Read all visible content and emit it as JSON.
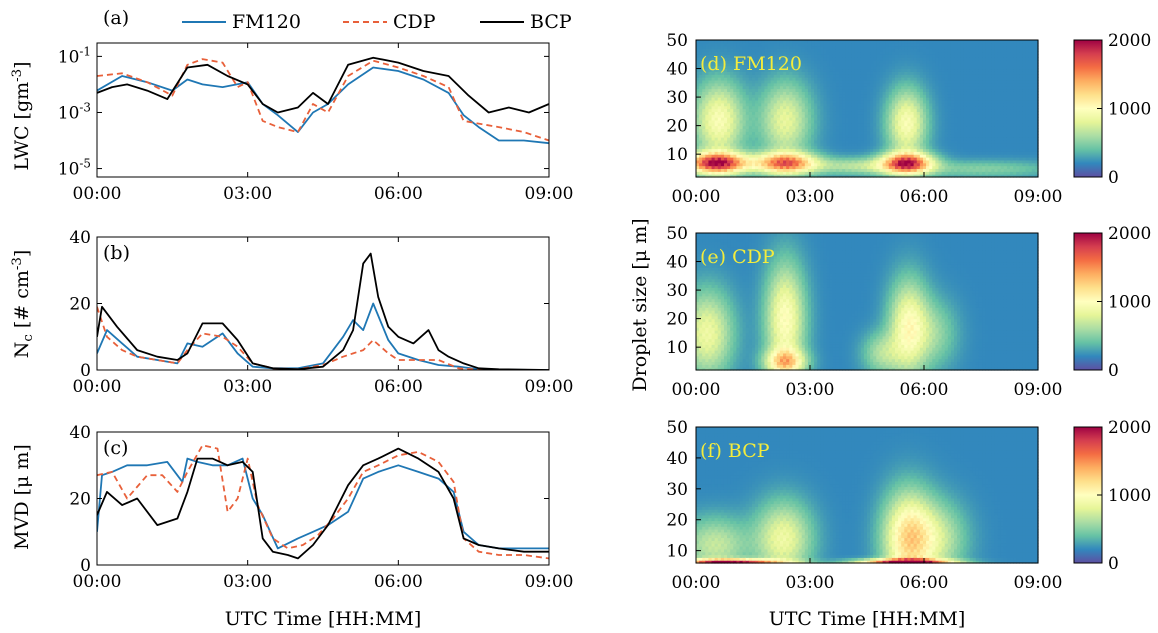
{
  "chart_data": [
    {
      "id": "a",
      "type": "line",
      "panel_label": "(a)",
      "ylabel": "LWC [gm^{-3}]",
      "yscale": "log",
      "ylim": [
        5e-06,
        0.3
      ],
      "yticks": [
        0.1,
        0.001,
        1e-05
      ],
      "ytick_labels": [
        "10^{-1}",
        "10^{-3}",
        "10^{-5}"
      ],
      "xlim": [
        0,
        9
      ],
      "xticks": [
        0,
        3,
        6,
        9
      ],
      "xtick_labels": [
        "00:00",
        "03:00",
        "06:00",
        "09:00"
      ],
      "x_unit": "hours",
      "series": [
        {
          "name": "FM120",
          "color": "#1f77b4",
          "dash": "solid",
          "x": [
            0,
            0.5,
            1,
            1.5,
            1.8,
            2.1,
            2.5,
            3,
            3.3,
            3.6,
            4,
            4.3,
            4.6,
            5,
            5.5,
            6,
            6.5,
            7,
            7.3,
            7.6,
            8,
            8.5,
            9
          ],
          "y": [
            0.006,
            0.02,
            0.012,
            0.006,
            0.015,
            0.01,
            0.008,
            0.012,
            0.002,
            0.0008,
            0.0002,
            0.001,
            0.002,
            0.01,
            0.04,
            0.03,
            0.015,
            0.005,
            0.0008,
            0.0003,
            0.0001,
            0.0001,
            8e-05
          ]
        },
        {
          "name": "CDP",
          "color": "#e8603a",
          "dash": "dashed",
          "x": [
            0,
            0.5,
            1,
            1.5,
            1.8,
            2.1,
            2.5,
            2.8,
            3,
            3.3,
            3.6,
            4,
            4.3,
            4.6,
            5,
            5.5,
            6,
            6.5,
            7,
            7.3,
            7.6,
            8,
            8.5,
            9
          ],
          "y": [
            0.02,
            0.025,
            0.012,
            0.004,
            0.05,
            0.08,
            0.06,
            0.008,
            0.012,
            0.0005,
            0.0003,
            0.0002,
            0.002,
            0.001,
            0.02,
            0.07,
            0.04,
            0.02,
            0.008,
            0.0005,
            0.0004,
            0.0003,
            0.0002,
            0.0001
          ]
        },
        {
          "name": "BCP",
          "color": "#000000",
          "dash": "solid",
          "x": [
            0,
            0.3,
            0.6,
            1,
            1.4,
            1.8,
            2.2,
            2.6,
            3,
            3.3,
            3.6,
            4,
            4.3,
            4.6,
            5,
            5.5,
            6,
            6.5,
            7,
            7.4,
            7.8,
            8.2,
            8.6,
            9
          ],
          "y": [
            0.005,
            0.008,
            0.01,
            0.006,
            0.003,
            0.04,
            0.05,
            0.02,
            0.01,
            0.002,
            0.001,
            0.0015,
            0.005,
            0.002,
            0.05,
            0.09,
            0.06,
            0.03,
            0.02,
            0.004,
            0.001,
            0.0015,
            0.001,
            0.002
          ]
        }
      ]
    },
    {
      "id": "b",
      "type": "line",
      "panel_label": "(b)",
      "ylabel": "N_c [# cm^{-3}]",
      "ylim": [
        0,
        40
      ],
      "yticks": [
        0,
        20,
        40
      ],
      "xlim": [
        0,
        9
      ],
      "xticks": [
        0,
        3,
        6,
        9
      ],
      "xtick_labels": [
        "00:00",
        "03:00",
        "06:00",
        "09:00"
      ],
      "x_unit": "hours",
      "series": [
        {
          "name": "FM120",
          "color": "#1f77b4",
          "dash": "solid",
          "x": [
            0,
            0.2,
            0.5,
            0.8,
            1.2,
            1.6,
            1.8,
            2.1,
            2.5,
            2.8,
            3.1,
            3.5,
            4,
            4.5,
            4.9,
            5.1,
            5.3,
            5.5,
            5.8,
            6,
            6.4,
            6.8,
            7.2,
            7.6,
            8,
            9
          ],
          "y": [
            5,
            12,
            8,
            4,
            3,
            2,
            8,
            7,
            11,
            5,
            1,
            0.5,
            0.5,
            2,
            10,
            15,
            12,
            20,
            9,
            5,
            3,
            1.5,
            1,
            0.2,
            0.1,
            0
          ]
        },
        {
          "name": "CDP",
          "color": "#e8603a",
          "dash": "dashed",
          "x": [
            0,
            0.2,
            0.5,
            0.8,
            1.2,
            1.6,
            1.8,
            2.1,
            2.5,
            2.8,
            3.1,
            3.5,
            4,
            4.5,
            4.9,
            5.1,
            5.3,
            5.5,
            5.8,
            6,
            6.4,
            6.8,
            7.2,
            7.6,
            8,
            9
          ],
          "y": [
            19,
            10,
            6,
            4,
            3,
            2,
            6,
            11,
            10,
            7,
            2,
            0.5,
            0.2,
            1.5,
            4,
            5,
            6,
            9,
            5,
            3,
            3,
            3,
            0.5,
            0.1,
            0,
            0
          ]
        },
        {
          "name": "BCP",
          "color": "#000000",
          "dash": "solid",
          "x": [
            0,
            0.1,
            0.4,
            0.8,
            1.2,
            1.6,
            1.8,
            2.1,
            2.5,
            2.8,
            3.1,
            3.5,
            4,
            4.5,
            4.9,
            5.1,
            5.3,
            5.45,
            5.6,
            5.8,
            6,
            6.3,
            6.6,
            6.8,
            7,
            7.3,
            7.6,
            8,
            9
          ],
          "y": [
            10,
            19,
            13,
            6,
            4,
            3,
            5,
            14,
            14,
            9,
            2,
            0.5,
            0.2,
            1,
            6,
            12,
            32,
            35,
            22,
            13,
            10,
            8,
            12,
            6,
            4,
            2,
            0.5,
            0.2,
            0
          ]
        }
      ]
    },
    {
      "id": "c",
      "type": "line",
      "panel_label": "(c)",
      "ylabel": "MVD [μ m]",
      "ylim": [
        0,
        40
      ],
      "yticks": [
        0,
        20,
        40
      ],
      "xlim": [
        0,
        9
      ],
      "xticks": [
        0,
        3,
        6,
        9
      ],
      "xtick_labels": [
        "00:00",
        "03:00",
        "06:00",
        "09:00"
      ],
      "x_unit": "hours",
      "series": [
        {
          "name": "FM120",
          "color": "#1f77b4",
          "dash": "solid",
          "x": [
            0,
            0.1,
            0.3,
            0.6,
            1,
            1.4,
            1.7,
            1.8,
            2.0,
            2.3,
            2.6,
            2.9,
            3.1,
            3.3,
            3.6,
            4,
            4.3,
            4.6,
            5,
            5.3,
            5.6,
            6,
            6.4,
            6.8,
            7.1,
            7.3,
            7.6,
            8,
            8.5,
            9
          ],
          "y": [
            10,
            27,
            28,
            30,
            30,
            31,
            25,
            32,
            31,
            30,
            30,
            32,
            20,
            15,
            5,
            8,
            10,
            12,
            16,
            26,
            28,
            30,
            28,
            26,
            22,
            10,
            6,
            5,
            5,
            5
          ]
        },
        {
          "name": "CDP",
          "color": "#e8603a",
          "dash": "dashed",
          "x": [
            0,
            0.3,
            0.6,
            1,
            1.3,
            1.6,
            1.8,
            2.1,
            2.4,
            2.6,
            2.8,
            3,
            3.2,
            3.5,
            3.8,
            4.1,
            4.4,
            4.7,
            5,
            5.3,
            5.6,
            6,
            6.4,
            6.8,
            7.1,
            7.3,
            7.6,
            8,
            8.5,
            9
          ],
          "y": [
            27,
            28,
            20,
            27,
            27,
            22,
            28,
            36,
            35,
            16,
            20,
            32,
            18,
            8,
            5,
            6,
            9,
            14,
            20,
            28,
            30,
            33,
            34,
            31,
            25,
            8,
            4,
            3,
            3,
            2
          ]
        },
        {
          "name": "BCP",
          "color": "#000000",
          "dash": "solid",
          "x": [
            0,
            0.2,
            0.5,
            0.8,
            1.2,
            1.6,
            1.8,
            2.0,
            2.3,
            2.6,
            2.9,
            3.1,
            3.3,
            3.5,
            3.8,
            4.0,
            4.3,
            4.6,
            5,
            5.3,
            5.6,
            6,
            6.4,
            6.8,
            7.1,
            7.3,
            7.6,
            8,
            8.5,
            9
          ],
          "y": [
            15,
            22,
            18,
            20,
            12,
            14,
            22,
            32,
            32,
            30,
            31,
            28,
            8,
            4,
            3,
            2,
            6,
            12,
            24,
            30,
            32,
            35,
            32,
            28,
            20,
            8,
            6,
            5,
            4,
            4
          ]
        }
      ]
    },
    {
      "id": "d",
      "type": "heatmap",
      "panel_label": "(d) FM120",
      "ylabel": "Droplet size [μ m]",
      "ylim": [
        2,
        50
      ],
      "yticks": [
        10,
        20,
        30,
        40,
        50
      ],
      "xlim": [
        0,
        9
      ],
      "xticks": [
        0,
        3,
        6,
        9
      ],
      "xtick_labels": [
        "00:00",
        "03:00",
        "06:00",
        "09:00"
      ],
      "colorbar": {
        "min": 0,
        "max": 2000,
        "ticks": [
          0,
          1000,
          2000
        ],
        "colormap": "Spectral_r"
      },
      "blobs": [
        {
          "t": 0.55,
          "d": 7,
          "st": 0.55,
          "sd": 2.5,
          "v": 2000
        },
        {
          "t": 0.6,
          "d": 22,
          "st": 0.45,
          "sd": 9,
          "v": 800
        },
        {
          "t": 2.35,
          "d": 7,
          "st": 0.55,
          "sd": 2.5,
          "v": 1600
        },
        {
          "t": 2.35,
          "d": 22,
          "st": 0.45,
          "sd": 9,
          "v": 650
        },
        {
          "t": 5.55,
          "d": 7,
          "st": 0.45,
          "sd": 2.5,
          "v": 1800
        },
        {
          "t": 5.55,
          "d": 21,
          "st": 0.35,
          "sd": 8,
          "v": 800
        },
        {
          "t": 4.3,
          "d": 6,
          "st": 0.9,
          "sd": 2,
          "v": 450
        },
        {
          "t": 7.5,
          "d": 5,
          "st": 1.4,
          "sd": 2,
          "v": 280
        }
      ]
    },
    {
      "id": "e",
      "type": "heatmap",
      "panel_label": "(e) CDP",
      "ylim": [
        2,
        50
      ],
      "yticks": [
        10,
        20,
        30,
        40,
        50
      ],
      "xlim": [
        0,
        9
      ],
      "xticks": [
        0,
        3,
        6,
        9
      ],
      "xtick_labels": [
        "00:00",
        "03:00",
        "06:00",
        "09:00"
      ],
      "colorbar": {
        "min": 0,
        "max": 2000,
        "ticks": [
          0,
          1000,
          2000
        ],
        "colormap": "Spectral_r"
      },
      "blobs": [
        {
          "t": 0.3,
          "d": 15,
          "st": 0.45,
          "sd": 10,
          "v": 700
        },
        {
          "t": 2.35,
          "d": 20,
          "st": 0.35,
          "sd": 13,
          "v": 850
        },
        {
          "t": 2.35,
          "d": 5,
          "st": 0.35,
          "sd": 3,
          "v": 1000
        },
        {
          "t": 5.6,
          "d": 17,
          "st": 0.35,
          "sd": 11,
          "v": 850
        },
        {
          "t": 4.9,
          "d": 8,
          "st": 0.35,
          "sd": 5,
          "v": 400
        },
        {
          "t": 6.3,
          "d": 15,
          "st": 0.4,
          "sd": 8,
          "v": 300
        }
      ]
    },
    {
      "id": "f",
      "type": "heatmap",
      "panel_label": "(f) BCP",
      "ylim": [
        6,
        50
      ],
      "yticks": [
        10,
        20,
        30,
        40,
        50
      ],
      "xlim": [
        0,
        9
      ],
      "xticks": [
        0,
        3,
        6,
        9
      ],
      "xtick_labels": [
        "00:00",
        "03:00",
        "06:00",
        "09:00"
      ],
      "xlabel": "UTC Time [HH:MM]",
      "colorbar": {
        "min": 0,
        "max": 2000,
        "ticks": [
          0,
          1000,
          2000
        ],
        "colormap": "Spectral_r"
      },
      "blobs": [
        {
          "t": 0.9,
          "d": 6.3,
          "st": 0.9,
          "sd": 0.8,
          "v": 2000
        },
        {
          "t": 5.5,
          "d": 6.3,
          "st": 0.8,
          "sd": 0.8,
          "v": 2000
        },
        {
          "t": 0.5,
          "d": 12,
          "st": 0.6,
          "sd": 6,
          "v": 500
        },
        {
          "t": 2.3,
          "d": 14,
          "st": 0.5,
          "sd": 8,
          "v": 700
        },
        {
          "t": 5.6,
          "d": 14,
          "st": 0.45,
          "sd": 10,
          "v": 1100
        },
        {
          "t": 6.4,
          "d": 14,
          "st": 0.5,
          "sd": 8,
          "v": 450
        }
      ]
    }
  ],
  "legend": {
    "position": "top",
    "entries": [
      {
        "name": "FM120",
        "color": "#1f77b4",
        "dash": "solid"
      },
      {
        "name": "CDP",
        "color": "#e8603a",
        "dash": "dashed"
      },
      {
        "name": "BCP",
        "color": "#000000",
        "dash": "solid"
      }
    ]
  },
  "shared_xlabel": "UTC Time [HH:MM]",
  "shared_heatmap_ylabel": "Droplet size [μ m]"
}
